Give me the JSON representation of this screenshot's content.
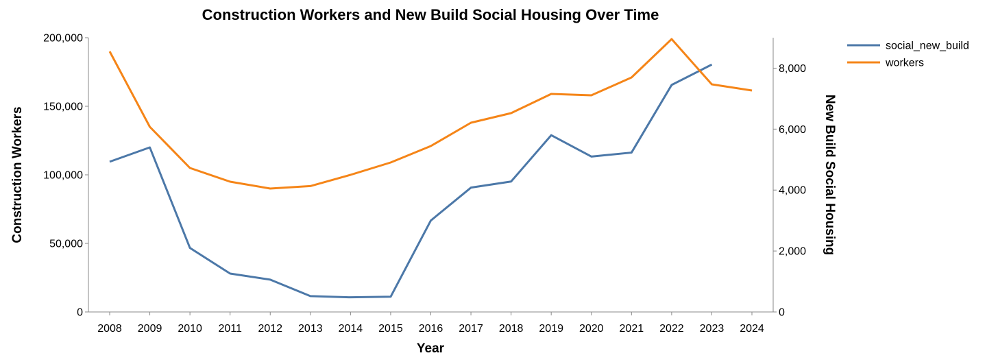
{
  "chart_data": {
    "type": "line",
    "title": "Construction Workers and New Build Social Housing Over Time",
    "xlabel": "Year",
    "ylabel_left": "Construction Workers",
    "ylabel_right": "New Build Social Housing",
    "categories": [
      "2008",
      "2009",
      "2010",
      "2011",
      "2012",
      "2013",
      "2014",
      "2015",
      "2016",
      "2017",
      "2018",
      "2019",
      "2020",
      "2021",
      "2022",
      "2023",
      "2024"
    ],
    "ylim_left": [
      0,
      200000
    ],
    "ylim_right": [
      0,
      9000
    ],
    "yticks_left": [
      {
        "value": 0,
        "label": "0"
      },
      {
        "value": 50000,
        "label": "50,000"
      },
      {
        "value": 100000,
        "label": "100,000"
      },
      {
        "value": 150000,
        "label": "150,000"
      },
      {
        "value": 200000,
        "label": "200,000"
      }
    ],
    "yticks_right": [
      {
        "value": 0,
        "label": "0"
      },
      {
        "value": 2000,
        "label": "2,000"
      },
      {
        "value": 4000,
        "label": "4,000"
      },
      {
        "value": 6000,
        "label": "6,000"
      },
      {
        "value": 8000,
        "label": "8,000"
      }
    ],
    "grid": false,
    "legend_position": "top-right",
    "series": [
      {
        "name": "social_new_build",
        "axis": "right",
        "color": "#4c78a8",
        "values": [
          4930,
          5400,
          2100,
          1260,
          1060,
          520,
          480,
          500,
          3000,
          4080,
          4280,
          5800,
          5100,
          5230,
          7450,
          8120,
          null
        ]
      },
      {
        "name": "workers",
        "axis": "left",
        "color": "#f58518",
        "values": [
          190000,
          135000,
          105000,
          95000,
          90000,
          91800,
          100000,
          109000,
          121000,
          138000,
          145000,
          159000,
          158000,
          171000,
          199000,
          166000,
          161500
        ]
      }
    ]
  }
}
